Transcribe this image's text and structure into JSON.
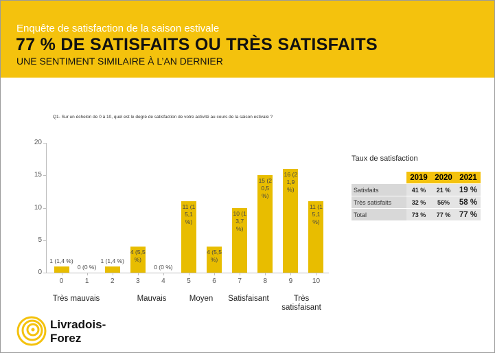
{
  "header": {
    "kicker": "Enquête de satisfaction de la saison estivale",
    "title": "77 % DE SATISFAITS OU TRÈS SATISFAITS",
    "subtitle": "UNE SENTIMENT SIMILAIRE À L’AN DERNIER"
  },
  "chart_data": {
    "type": "bar",
    "title": "Q1- Sur un échelon de 0 à 10, quel est le degré de satisfaction de votre activité au cours de la saison estivale ?",
    "categories": [
      "0",
      "1",
      "2",
      "3",
      "4",
      "5",
      "6",
      "7",
      "8",
      "9",
      "10"
    ],
    "values": [
      1,
      0,
      1,
      4,
      0,
      11,
      4,
      10,
      15,
      16,
      11
    ],
    "value_labels": [
      "1 (1,4 %)",
      "0 (0 %)",
      "1 (1,4 %)",
      "4 (5,5 %)",
      "0 (0 %)",
      "11 (15,1 %)",
      "4 (5,5 %)",
      "10 (13,7 %)",
      "15 (20,5 %)",
      "16 (21,9 %)",
      "11 (15,1 %)"
    ],
    "color": "#e8bd00",
    "ylim": [
      0,
      20
    ],
    "yticks": [
      0,
      5,
      10,
      15,
      20
    ],
    "group_labels": [
      "Très mauvais",
      "Mauvais",
      "Moyen",
      "Satisfaisant",
      "Très satisfaisant"
    ]
  },
  "table": {
    "title": "Taux de satisfaction",
    "header": [
      "2019",
      "2020",
      "2021"
    ],
    "rows": [
      [
        "Satisfaits",
        "41 %",
        "21 %",
        "19 %"
      ],
      [
        "Très satisfaits",
        "32 %",
        "56%",
        "58 %"
      ],
      [
        "Total",
        "73 %",
        "77 %",
        "77 %"
      ]
    ]
  },
  "logo": {
    "line1": "Livradois-",
    "line2": "Forez"
  }
}
